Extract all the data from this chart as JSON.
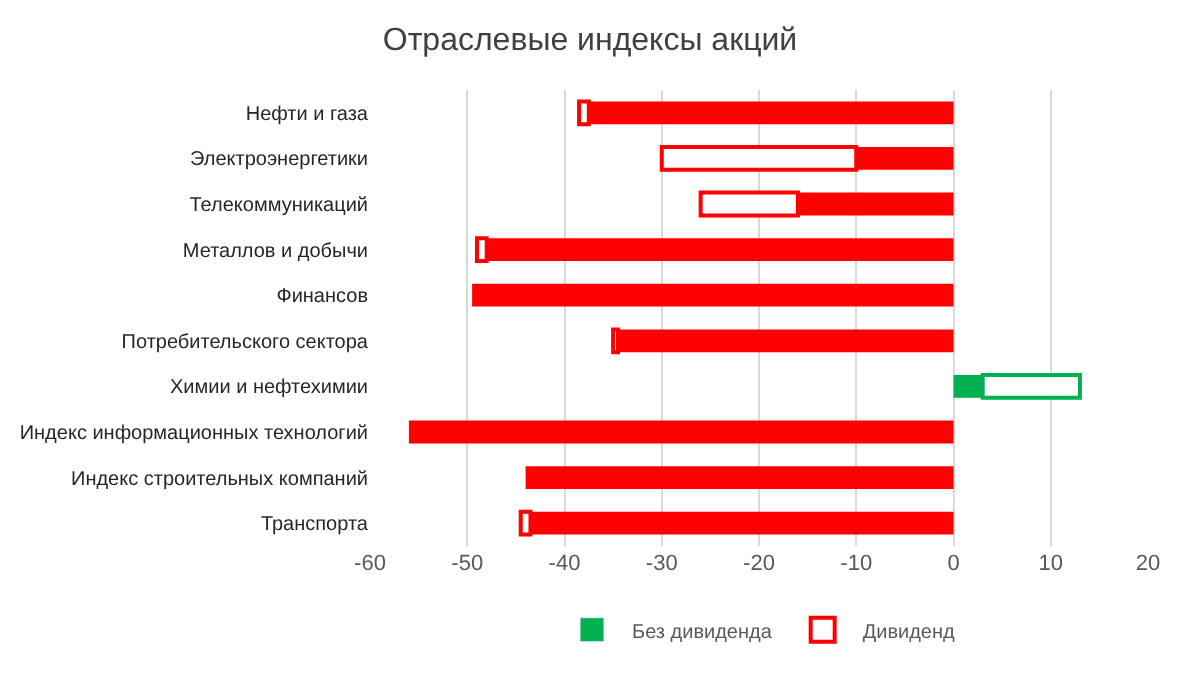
{
  "chart_data": {
    "type": "bar",
    "title": "Отраслевые индексы акций",
    "orientation": "horizontal",
    "stacked": true,
    "categories": [
      "Нефти и газа",
      "Электроэнергетики",
      "Телекоммуникаций",
      "Металлов и добычи",
      "Финансов",
      "Потребительского сектора",
      "Химии и нефтехимии",
      "Индекс информационных технологий",
      "Индекс строительных компаний",
      "Транспорта"
    ],
    "series": [
      {
        "name": "Без дивиденда",
        "color": "#00b050",
        "colors": [
          "#ff0000",
          "#ff0000",
          "#ff0000",
          "#ff0000",
          "#ff0000",
          "#ff0000",
          "#00b050",
          "#ff0000",
          "#ff0000",
          "#ff0000"
        ],
        "values": [
          -37.5,
          -10,
          -16,
          -48,
          -49.5,
          -34.5,
          3,
          -56,
          -44,
          -43.5
        ]
      },
      {
        "name": "Дивиденд",
        "color": "#ff0000",
        "line_style": "dashed",
        "colors": [
          "#ff0000",
          "#ff0000",
          "#ff0000",
          "#ff0000",
          "#ff0000",
          "#ff0000",
          "#00b050",
          "#ff0000",
          "#ff0000",
          "#ff0000"
        ],
        "values": [
          -1,
          -20,
          -10,
          -1,
          null,
          -0.5,
          10,
          null,
          null,
          -1
        ]
      }
    ],
    "xlim": [
      -60,
      20
    ],
    "xticks": [
      -60,
      -50,
      -40,
      -30,
      -20,
      -10,
      0,
      10,
      20
    ],
    "grid": "x",
    "legend": "bottom"
  }
}
